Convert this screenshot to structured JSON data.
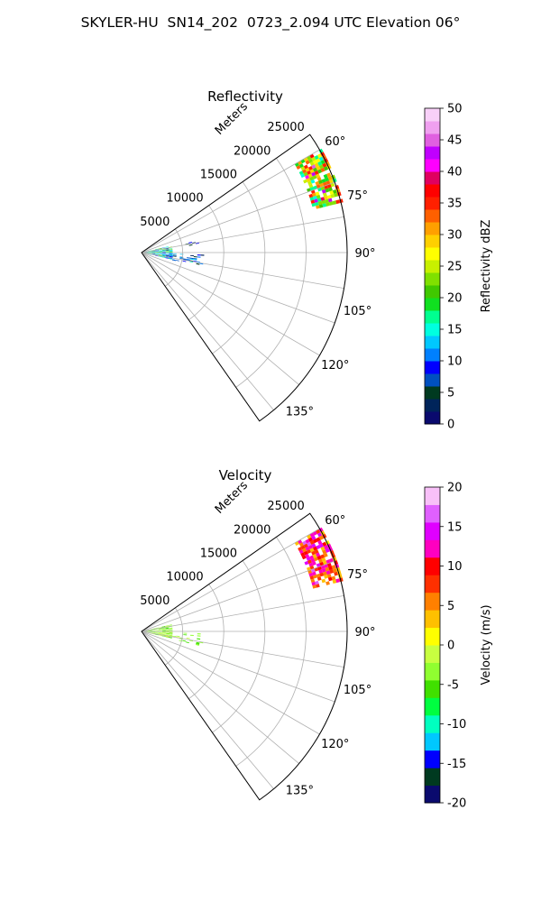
{
  "suptitle": "SKYLER-HU  SN14_202  0723_2.094 UTC Elevation 06°",
  "chart_data": [
    {
      "type": "heatmap",
      "subtype": "polar-sector",
      "title": "Reflectivity",
      "range_axis_label": "Meters",
      "range_ticks": [
        5000,
        10000,
        15000,
        20000,
        25000
      ],
      "range_tick_labels": [
        "5000",
        "10000",
        "15000",
        "20000",
        "25000"
      ],
      "range_max": 25000,
      "azimuth_ticks": [
        60,
        75,
        90,
        105,
        120,
        135
      ],
      "azimuth_tick_labels": [
        "60°",
        "75°",
        "90°",
        "105°",
        "120°",
        "135°"
      ],
      "azimuth_range": [
        55,
        145
      ],
      "grid": true,
      "colorbar": {
        "label": "Reflectivity dBZ",
        "min": 0,
        "max": 50,
        "ticks": [
          0,
          5,
          10,
          15,
          20,
          25,
          30,
          35,
          40,
          45,
          50
        ],
        "tick_labels": [
          "0",
          "5",
          "10",
          "15",
          "20",
          "25",
          "30",
          "35",
          "40",
          "45",
          "50"
        ],
        "colors": [
          "#0a0a6e",
          "#00245a",
          "#003a20",
          "#0050c0",
          "#0000ff",
          "#0080ff",
          "#00c8ff",
          "#00ffe0",
          "#00ff90",
          "#10e020",
          "#40c800",
          "#80e000",
          "#c8f000",
          "#ffff00",
          "#ffd000",
          "#ffa000",
          "#ff6000",
          "#ff2000",
          "#ff0000",
          "#e00060",
          "#ff00ff",
          "#c000ff",
          "#e060e0",
          "#f0a0f0",
          "#f8d0f8"
        ]
      },
      "echo_regions": [
        {
          "az": [
            60,
            76
          ],
          "range": [
            21500,
            25000
          ],
          "value_range": [
            15,
            38
          ],
          "peak": 35
        },
        {
          "az": [
            77,
            103
          ],
          "range": [
            0,
            3500
          ],
          "value_range": [
            8,
            22
          ],
          "peak": 20
        },
        {
          "az": [
            92,
            104
          ],
          "range": [
            3000,
            7500
          ],
          "value_range": [
            3,
            15
          ],
          "peak": 12
        },
        {
          "az": [
            78,
            82
          ],
          "range": [
            5000,
            7000
          ],
          "value_range": [
            2,
            10
          ],
          "peak": 8
        }
      ]
    },
    {
      "type": "heatmap",
      "subtype": "polar-sector",
      "title": "Velocity",
      "range_axis_label": "Meters",
      "range_ticks": [
        5000,
        10000,
        15000,
        20000,
        25000
      ],
      "range_tick_labels": [
        "5000",
        "10000",
        "15000",
        "20000",
        "25000"
      ],
      "range_max": 25000,
      "azimuth_ticks": [
        60,
        75,
        90,
        105,
        120,
        135
      ],
      "azimuth_tick_labels": [
        "60°",
        "75°",
        "90°",
        "105°",
        "120°",
        "135°"
      ],
      "azimuth_range": [
        55,
        145
      ],
      "grid": true,
      "colorbar": {
        "label": "Velocity (m/s)",
        "min": -20,
        "max": 20,
        "ticks": [
          -20,
          -15,
          -10,
          -5,
          0,
          5,
          10,
          15,
          20
        ],
        "tick_labels": [
          "-20",
          "-15",
          "-10",
          "-5",
          "0",
          "5",
          "10",
          "15",
          "20"
        ],
        "colors": [
          "#0a0a6e",
          "#003a20",
          "#0000ff",
          "#00c8ff",
          "#00ffc0",
          "#00ff40",
          "#40e000",
          "#90ff30",
          "#c8ff40",
          "#ffff00",
          "#ffc000",
          "#ff8000",
          "#ff3000",
          "#ff0000",
          "#ff00c0",
          "#e000ff",
          "#e060ff",
          "#f8c0f8"
        ]
      },
      "echo_regions": [
        {
          "az": [
            60,
            76
          ],
          "range": [
            21500,
            25000
          ],
          "value_range": [
            2,
            16
          ],
          "peak": 12
        },
        {
          "az": [
            77,
            103
          ],
          "range": [
            0,
            3500
          ],
          "value_range": [
            -6,
            0
          ],
          "peak": -3
        },
        {
          "az": [
            92,
            104
          ],
          "range": [
            3000,
            7500
          ],
          "value_range": [
            -6,
            1
          ],
          "peak": -2
        }
      ]
    }
  ]
}
